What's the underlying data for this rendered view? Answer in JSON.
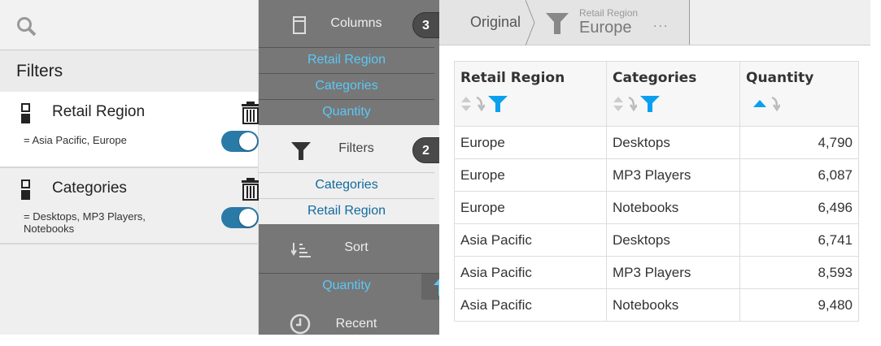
{
  "left": {
    "section_title": "Filters",
    "filters": [
      {
        "name": "Retail Region",
        "value": "= Asia Pacific, Europe",
        "enabled": true
      },
      {
        "name": "Categories",
        "value": "= Desktops, MP3 Players, Notebooks",
        "enabled": true
      }
    ]
  },
  "mid": {
    "columns": {
      "label": "Columns",
      "count": "3",
      "items": [
        "Retail Region",
        "Categories",
        "Quantity"
      ]
    },
    "filters": {
      "label": "Filters",
      "count": "2",
      "items": [
        "Categories",
        "Retail Region"
      ]
    },
    "sort": {
      "label": "Sort",
      "items": [
        "Quantity"
      ],
      "direction": "ascending"
    },
    "recent": {
      "label": "Recent"
    }
  },
  "breadcrumb": {
    "original": "Original",
    "filter_field": "Retail Region",
    "filter_value": "Europe",
    "more": "..."
  },
  "table": {
    "headers": [
      "Retail Region",
      "Categories",
      "Quantity"
    ],
    "rows": [
      [
        "Europe",
        "Desktops",
        "4,790"
      ],
      [
        "Europe",
        "MP3 Players",
        "6,087"
      ],
      [
        "Europe",
        "Notebooks",
        "6,496"
      ],
      [
        "Asia Pacific",
        "Desktops",
        "6,741"
      ],
      [
        "Asia Pacific",
        "MP3 Players",
        "8,593"
      ],
      [
        "Asia Pacific",
        "Notebooks",
        "9,480"
      ]
    ]
  },
  "colors": {
    "accent": "#0aa0ef",
    "toggle": "#2a7aa8",
    "link_light": "#5bc8f5",
    "link_dark": "#136a9e"
  }
}
